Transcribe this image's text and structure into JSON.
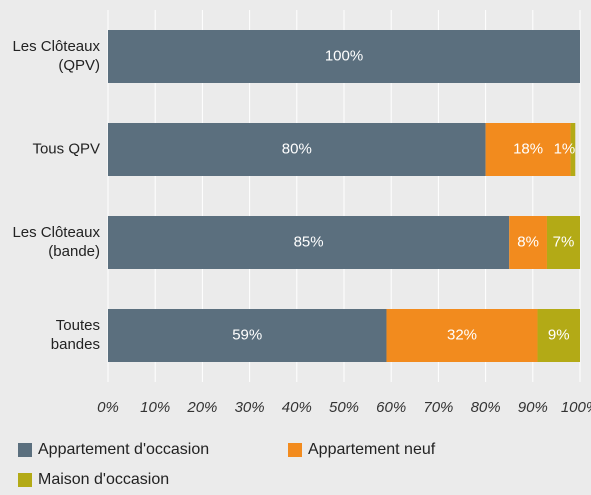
{
  "chart_data": {
    "type": "stacked-barh",
    "categories": [
      [
        "Les Clôteaux",
        "(QPV)"
      ],
      [
        "Tous QPV"
      ],
      [
        "Les Clôteaux",
        "(bande)"
      ],
      [
        "Toutes",
        "bandes"
      ]
    ],
    "series": [
      {
        "name": "Appartement d'occasion",
        "color": "#5b6f7e",
        "values": [
          100,
          80,
          85,
          59
        ],
        "value_labels": [
          "100%",
          "80%",
          "85%",
          "59%"
        ]
      },
      {
        "name": "Appartement neuf",
        "color": "#f28b1e",
        "values": [
          0,
          18,
          8,
          32
        ],
        "value_labels": [
          null,
          "18%",
          "8%",
          "32%"
        ]
      },
      {
        "name": "Maison d'occasion",
        "color": "#b3aa16",
        "values": [
          0,
          1,
          7,
          9
        ],
        "value_labels": [
          null,
          "1%",
          "7%",
          "9%"
        ]
      }
    ],
    "xlim": [
      0,
      100
    ],
    "xticks": [
      {
        "value": 0,
        "label": "0%"
      },
      {
        "value": 10,
        "label": "10%"
      },
      {
        "value": 20,
        "label": "20%"
      },
      {
        "value": 30,
        "label": "30%"
      },
      {
        "value": 40,
        "label": "40%"
      },
      {
        "value": 50,
        "label": "50%"
      },
      {
        "value": 60,
        "label": "60%"
      },
      {
        "value": 70,
        "label": "70%"
      },
      {
        "value": 80,
        "label": "80%"
      },
      {
        "value": 90,
        "label": "90%"
      },
      {
        "value": 100,
        "label": "100%"
      }
    ],
    "grid": true
  }
}
